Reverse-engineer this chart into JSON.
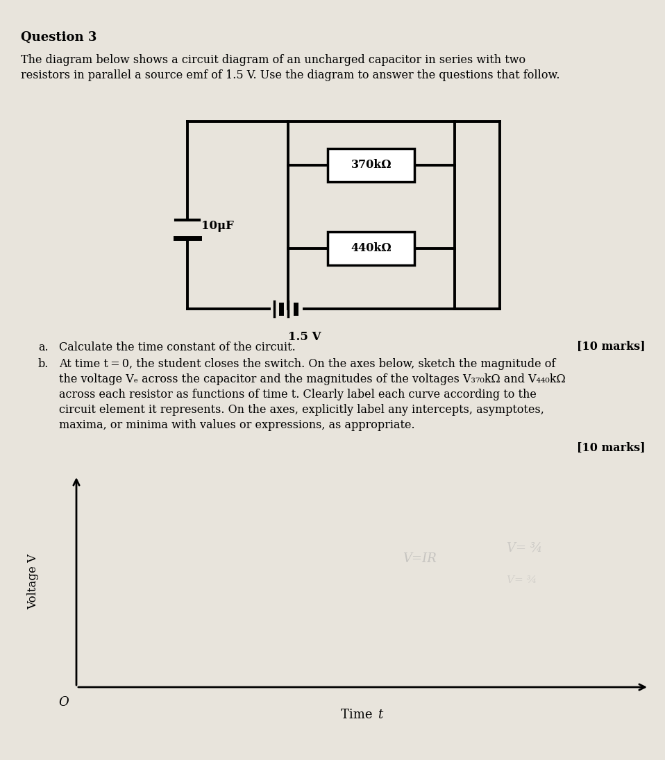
{
  "bg_color": "#e8e4dc",
  "title_text": "Question 3",
  "body_text_1": "The diagram below shows a circuit diagram of an uncharged capacitor in series with two",
  "body_text_2": "resistors in parallel a source emf of 1.5 V. Use the diagram to answer the questions that follow.",
  "marks_a": "[10 marks]",
  "marks_b": "[10 marks]",
  "xlabel": "Time ",
  "xlabel_italic": "t",
  "ylabel": "Voltage V",
  "origin_label": "O",
  "res1_label": "370kΩ",
  "res2_label": "440kΩ",
  "cap_label": "10μF",
  "emf_label": "1.5 V"
}
